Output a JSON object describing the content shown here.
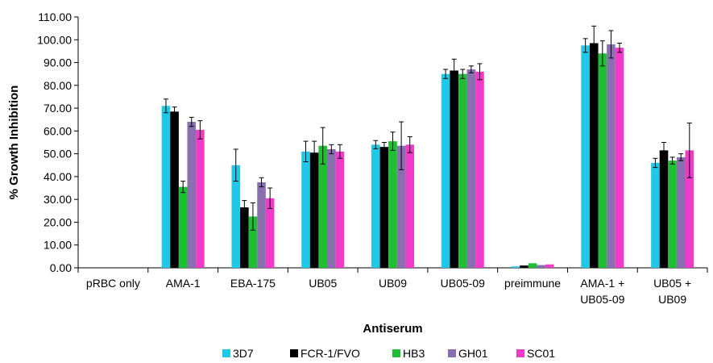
{
  "chart_data": {
    "type": "bar",
    "title": "",
    "xlabel": "Antiserum",
    "ylabel": "% Growth Inhibition",
    "ylim": [
      0,
      110
    ],
    "yticks": [
      "0.00",
      "10.00",
      "20.00",
      "30.00",
      "40.00",
      "50.00",
      "60.00",
      "70.00",
      "80.00",
      "90.00",
      "100.00",
      "110.00"
    ],
    "grid": false,
    "legend_position": "bottom",
    "categories": [
      [
        "pRBC only"
      ],
      [
        "AMA-1"
      ],
      [
        "EBA-175"
      ],
      [
        "UB05"
      ],
      [
        "UB09"
      ],
      [
        "UB05-09"
      ],
      [
        "preimmune"
      ],
      [
        "AMA-1 +",
        "UB05-09"
      ],
      [
        "UB05 +",
        "UB09"
      ]
    ],
    "series": [
      {
        "name": "3D7",
        "color": "#1ec8e6",
        "values": [
          0,
          71.0,
          45.0,
          51.0,
          54.0,
          85.0,
          0.6,
          97.5,
          46.0
        ],
        "errors": [
          0,
          3.0,
          7.0,
          4.5,
          1.8,
          2.0,
          0.3,
          3.0,
          2.0
        ]
      },
      {
        "name": "FCR-1/FVO",
        "color": "#000000",
        "values": [
          0,
          68.5,
          26.5,
          50.5,
          53.0,
          86.5,
          1.0,
          98.5,
          51.5
        ],
        "errors": [
          0,
          2.0,
          3.0,
          5.0,
          2.0,
          5.0,
          0.3,
          7.5,
          3.5
        ]
      },
      {
        "name": "HB3",
        "color": "#1fbf34",
        "values": [
          0,
          35.5,
          22.5,
          53.5,
          55.5,
          85.0,
          2.0,
          94.0,
          47.0
        ],
        "errors": [
          0,
          2.5,
          6.0,
          8.0,
          4.0,
          2.0,
          0.3,
          5.5,
          1.5
        ]
      },
      {
        "name": "GH01",
        "color": "#8a6fb0",
        "values": [
          0,
          64.0,
          37.5,
          52.0,
          53.5,
          87.0,
          1.2,
          98.0,
          48.5
        ],
        "errors": [
          0,
          2.0,
          2.0,
          2.0,
          10.5,
          1.5,
          0.3,
          6.0,
          1.5
        ]
      },
      {
        "name": "SC01",
        "color": "#f03ac8",
        "values": [
          0,
          60.5,
          30.5,
          51.0,
          54.0,
          86.0,
          1.5,
          96.5,
          51.5
        ],
        "errors": [
          0,
          4.0,
          4.5,
          3.0,
          3.5,
          3.5,
          0.3,
          2.0,
          12.0
        ]
      }
    ]
  }
}
